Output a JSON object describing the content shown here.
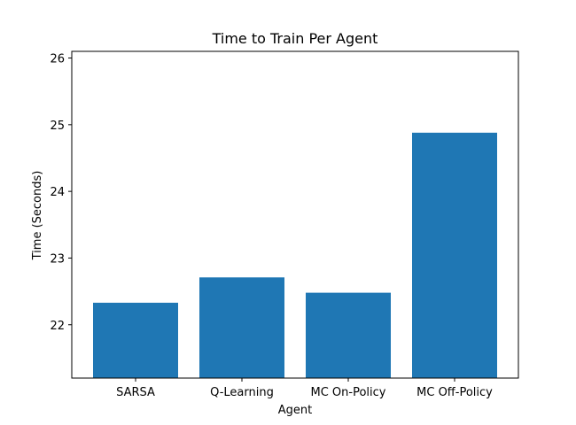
{
  "chart_data": {
    "type": "bar",
    "title": "Time to Train Per Agent",
    "xlabel": "Agent",
    "ylabel": "Time (Seconds)",
    "categories": [
      "SARSA",
      "Q-Learning",
      "MC On-Policy",
      "MC Off-Policy"
    ],
    "values": [
      22.33,
      22.71,
      22.48,
      24.88
    ],
    "ylim": [
      21.2,
      26.1
    ],
    "yticks": [
      22,
      23,
      24,
      25,
      26
    ],
    "bar_color": "#1f77b4",
    "grid": false,
    "legend": "none"
  }
}
